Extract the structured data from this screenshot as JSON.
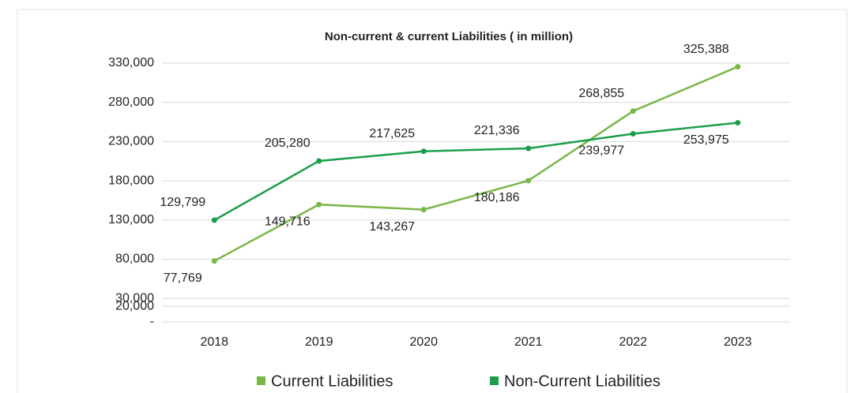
{
  "chart_data": {
    "type": "line",
    "title": "Non-current & current Liabilities ( in million)",
    "categories": [
      "2018",
      "2019",
      "2020",
      "2021",
      "2022",
      "2023"
    ],
    "series": [
      {
        "name": "Current Liabilities",
        "color": "#7ab648",
        "values": [
          77769,
          149716,
          143267,
          180186,
          268855,
          325388
        ]
      },
      {
        "name": "Non-Current Liabilities",
        "color": "#1a9e4a",
        "values": [
          129799,
          205280,
          217625,
          221336,
          239977,
          253975
        ]
      }
    ],
    "ylim": [
      0,
      330000
    ],
    "yticks": [
      {
        "value": 0,
        "label": "-"
      },
      {
        "value": 20000,
        "label": "20,000"
      },
      {
        "value": 30000,
        "label": "30,000"
      },
      {
        "value": 80000,
        "label": "80,000"
      },
      {
        "value": 130000,
        "label": "130,000"
      },
      {
        "value": 180000,
        "label": "180,000"
      },
      {
        "value": 230000,
        "label": "230,000"
      },
      {
        "value": 280000,
        "label": "280,000"
      },
      {
        "value": 330000,
        "label": "330,000"
      }
    ],
    "series_value_labels": null,
    "grid": true,
    "legend": "bottom"
  }
}
